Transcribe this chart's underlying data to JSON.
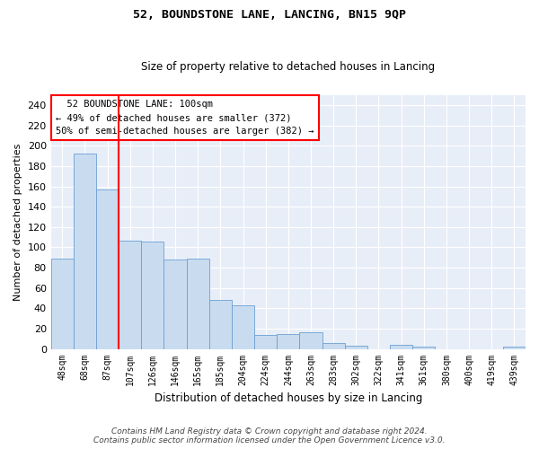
{
  "title": "52, BOUNDSTONE LANE, LANCING, BN15 9QP",
  "subtitle": "Size of property relative to detached houses in Lancing",
  "xlabel": "Distribution of detached houses by size in Lancing",
  "ylabel": "Number of detached properties",
  "bar_color": "#c9dcef",
  "bar_edge_color": "#6b9fd4",
  "background_color": "#e8eef8",
  "grid_color": "#ffffff",
  "categories": [
    "48sqm",
    "68sqm",
    "87sqm",
    "107sqm",
    "126sqm",
    "146sqm",
    "165sqm",
    "185sqm",
    "204sqm",
    "224sqm",
    "244sqm",
    "263sqm",
    "283sqm",
    "302sqm",
    "322sqm",
    "341sqm",
    "361sqm",
    "380sqm",
    "400sqm",
    "419sqm",
    "439sqm"
  ],
  "values": [
    89,
    192,
    157,
    107,
    106,
    88,
    89,
    48,
    43,
    14,
    15,
    16,
    6,
    3,
    0,
    4,
    2,
    0,
    0,
    0,
    2
  ],
  "ylim": [
    0,
    250
  ],
  "yticks": [
    0,
    20,
    40,
    60,
    80,
    100,
    120,
    140,
    160,
    180,
    200,
    220,
    240
  ],
  "red_line_index": 2.5,
  "annotation_text": "  52 BOUNDSTONE LANE: 100sqm\n← 49% of detached houses are smaller (372)\n50% of semi-detached houses are larger (382) →",
  "footer": "Contains HM Land Registry data © Crown copyright and database right 2024.\nContains public sector information licensed under the Open Government Licence v3.0.",
  "title_fontsize": 9.5,
  "subtitle_fontsize": 8.5,
  "ylabel_fontsize": 8.0,
  "xlabel_fontsize": 8.5,
  "ytick_fontsize": 8.0,
  "xtick_fontsize": 7.0,
  "annotation_fontsize": 7.5,
  "footer_fontsize": 6.5
}
